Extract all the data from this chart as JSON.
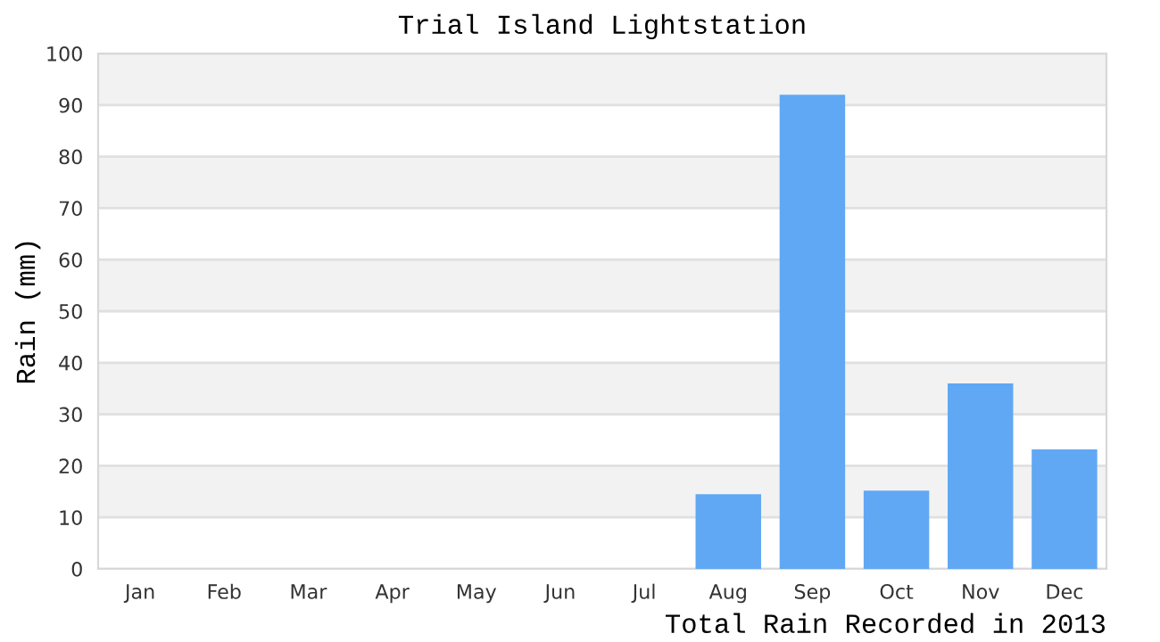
{
  "chart_data": {
    "type": "bar",
    "title": "Trial Island Lightstation",
    "ylabel": "Rain (mm)",
    "annotations": [
      "Total Rain Recorded in 2013"
    ],
    "categories": [
      "Jan",
      "Feb",
      "Mar",
      "Apr",
      "May",
      "Jun",
      "Jul",
      "Aug",
      "Sep",
      "Oct",
      "Nov",
      "Dec"
    ],
    "values": [
      0,
      0,
      0,
      0,
      0,
      0,
      0,
      14.5,
      92.0,
      15.2,
      36.0,
      23.2
    ],
    "color": "#60a8f4",
    "ylim": [
      0,
      100
    ],
    "yticks": [
      0,
      10,
      20,
      30,
      40,
      50,
      60,
      70,
      80,
      90,
      100
    ],
    "grid": "y"
  }
}
